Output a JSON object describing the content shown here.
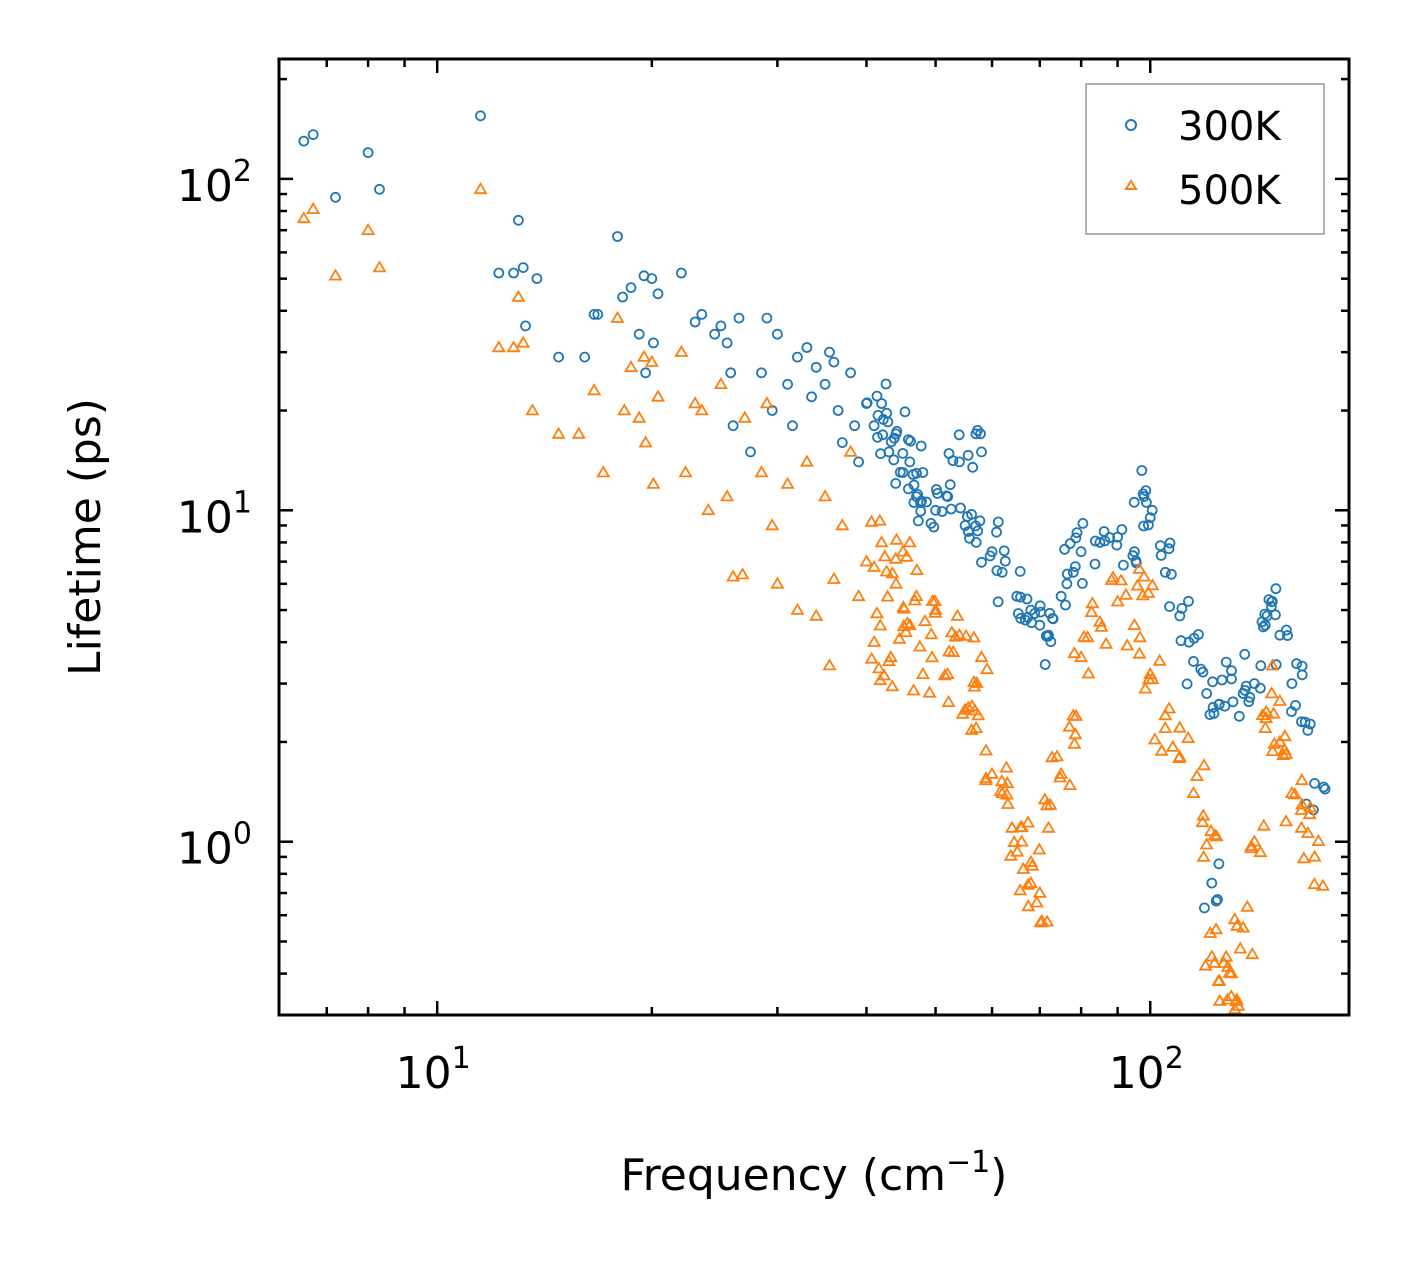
{
  "chart_data": {
    "type": "scatter",
    "title": "",
    "xlabel": "Frequency (cm",
    "xlabel_sup": "−1",
    "xlabel_close": ")",
    "ylabel": "Lifetime (ps)",
    "xscale": "log",
    "yscale": "log",
    "xlim": [
      6.0,
      190.0
    ],
    "ylim": [
      0.3,
      230.0
    ],
    "x_ticks": [
      {
        "value": 10,
        "base": "10",
        "exp": "1"
      },
      {
        "value": 100,
        "base": "10",
        "exp": "2"
      }
    ],
    "y_ticks": [
      {
        "value": 1,
        "base": "10",
        "exp": "0"
      },
      {
        "value": 10,
        "base": "10",
        "exp": "1"
      },
      {
        "value": 100,
        "base": "10",
        "exp": "2"
      }
    ],
    "grid": false,
    "legend_position": "top-right",
    "series": [
      {
        "name": "300K",
        "marker": "circle",
        "color": "#1f77b4",
        "points": [
          [
            6.5,
            130
          ],
          [
            6.7,
            136
          ],
          [
            7.2,
            88
          ],
          [
            8.0,
            120
          ],
          [
            8.3,
            93
          ],
          [
            11.5,
            155
          ],
          [
            12.2,
            52
          ],
          [
            12.8,
            52
          ],
          [
            13.0,
            75
          ],
          [
            13.2,
            54
          ],
          [
            13.3,
            36
          ],
          [
            13.8,
            50
          ],
          [
            14.8,
            29
          ],
          [
            16.1,
            29
          ],
          [
            16.6,
            39
          ],
          [
            16.8,
            39
          ],
          [
            17.9,
            67
          ],
          [
            18.2,
            44
          ],
          [
            18.7,
            47
          ],
          [
            19.2,
            34
          ],
          [
            19.5,
            51
          ],
          [
            19.6,
            26
          ],
          [
            20.0,
            50
          ],
          [
            20.1,
            32
          ],
          [
            20.4,
            45
          ],
          [
            22.0,
            52
          ],
          [
            23.0,
            37
          ],
          [
            23.5,
            39
          ],
          [
            24.5,
            34
          ],
          [
            25.0,
            36
          ],
          [
            25.5,
            32
          ],
          [
            25.8,
            26
          ],
          [
            26.5,
            38
          ],
          [
            26.0,
            18
          ],
          [
            27.5,
            15
          ],
          [
            28.5,
            26
          ],
          [
            29.0,
            38
          ],
          [
            29.5,
            20
          ],
          [
            30.0,
            34
          ],
          [
            31.0,
            24
          ],
          [
            31.5,
            18
          ],
          [
            32.0,
            29
          ],
          [
            33.0,
            31
          ],
          [
            33.5,
            22
          ],
          [
            34.0,
            27
          ],
          [
            35.0,
            24
          ],
          [
            35.5,
            30
          ],
          [
            36.0,
            28
          ],
          [
            36.5,
            20
          ],
          [
            37.0,
            16
          ],
          [
            38.0,
            26
          ],
          [
            38.5,
            18
          ],
          [
            39.0,
            14
          ],
          [
            40.0,
            21
          ],
          [
            41.0,
            18
          ],
          [
            42.0,
            21
          ],
          [
            43.0,
            15
          ],
          [
            44.0,
            17
          ],
          [
            45.0,
            13
          ],
          [
            46.0,
            14
          ],
          [
            47.0,
            11
          ],
          [
            48.0,
            13
          ],
          [
            50.0,
            10
          ],
          [
            52.0,
            11
          ],
          [
            54.0,
            14
          ],
          [
            55.0,
            9
          ],
          [
            57.0,
            8
          ],
          [
            58.0,
            15
          ],
          [
            60.0,
            7.5
          ],
          [
            62.0,
            6.5
          ],
          [
            65.0,
            5.5
          ],
          [
            68.0,
            5.0
          ],
          [
            70.0,
            4.5
          ],
          [
            72.0,
            4.2
          ],
          [
            75.0,
            5.5
          ],
          [
            78.0,
            6.5
          ],
          [
            80.0,
            7.5
          ],
          [
            85.0,
            8.0
          ],
          [
            90.0,
            8.3
          ],
          [
            95.0,
            7.5
          ],
          [
            98.0,
            11.0
          ],
          [
            100.0,
            9.5
          ],
          [
            105.0,
            6.5
          ],
          [
            110.0,
            4.8
          ],
          [
            115.0,
            3.5
          ],
          [
            120.0,
            2.8
          ],
          [
            122.0,
            0.75
          ],
          [
            125.0,
            2.6
          ],
          [
            130.0,
            3.1
          ],
          [
            135.0,
            2.8
          ],
          [
            140.0,
            3.0
          ],
          [
            145.0,
            4.5
          ],
          [
            148.0,
            5.3
          ],
          [
            152.0,
            4.2
          ],
          [
            158.0,
            3.0
          ],
          [
            163.0,
            2.3
          ],
          [
            170.0,
            1.5
          ]
        ]
      },
      {
        "name": "500K",
        "marker": "triangle",
        "color": "#ff7f0e",
        "points": [
          [
            6.5,
            76
          ],
          [
            6.7,
            81
          ],
          [
            7.2,
            51
          ],
          [
            8.0,
            70
          ],
          [
            8.3,
            54
          ],
          [
            11.5,
            93
          ],
          [
            12.2,
            31
          ],
          [
            12.8,
            31
          ],
          [
            13.0,
            44
          ],
          [
            13.2,
            32
          ],
          [
            13.6,
            20
          ],
          [
            14.8,
            17
          ],
          [
            15.8,
            17
          ],
          [
            16.6,
            23
          ],
          [
            17.1,
            13
          ],
          [
            17.9,
            38
          ],
          [
            18.3,
            20
          ],
          [
            18.7,
            27
          ],
          [
            19.2,
            19
          ],
          [
            19.5,
            29
          ],
          [
            19.6,
            16
          ],
          [
            20.0,
            28
          ],
          [
            20.1,
            12
          ],
          [
            20.4,
            22
          ],
          [
            22.0,
            30
          ],
          [
            22.3,
            13
          ],
          [
            23.0,
            21
          ],
          [
            23.5,
            20
          ],
          [
            24.0,
            10
          ],
          [
            25.0,
            24
          ],
          [
            25.5,
            11
          ],
          [
            26.0,
            6.3
          ],
          [
            26.8,
            6.4
          ],
          [
            27.0,
            19
          ],
          [
            28.5,
            13
          ],
          [
            29.0,
            21
          ],
          [
            29.5,
            9
          ],
          [
            30.0,
            6.0
          ],
          [
            31.0,
            12
          ],
          [
            32.0,
            5
          ],
          [
            33.0,
            14
          ],
          [
            34.0,
            4.8
          ],
          [
            35.0,
            11
          ],
          [
            35.5,
            3.4
          ],
          [
            36.0,
            6.2
          ],
          [
            37.0,
            9
          ],
          [
            38.0,
            15
          ],
          [
            39.0,
            5.5
          ],
          [
            40.0,
            7
          ],
          [
            41.0,
            4.0
          ],
          [
            42.0,
            8
          ],
          [
            43.0,
            3.5
          ],
          [
            44.0,
            6
          ],
          [
            45.0,
            7.5
          ],
          [
            46.0,
            4.5
          ],
          [
            47.0,
            5.5
          ],
          [
            48.0,
            3.2
          ],
          [
            50.0,
            5
          ],
          [
            52.0,
            3.2
          ],
          [
            54.0,
            4.2
          ],
          [
            55.0,
            2.5
          ],
          [
            57.0,
            2.2
          ],
          [
            58.0,
            3.6
          ],
          [
            60.0,
            1.6
          ],
          [
            62.0,
            1.4
          ],
          [
            64.0,
            1.1
          ],
          [
            66.0,
            1.0
          ],
          [
            68.0,
            0.75
          ],
          [
            70.0,
            0.7
          ],
          [
            72.0,
            1.1
          ],
          [
            75.0,
            1.6
          ],
          [
            78.0,
            2.4
          ],
          [
            80.0,
            3.6
          ],
          [
            85.0,
            4.6
          ],
          [
            90.0,
            5.3
          ],
          [
            95.0,
            4.5
          ],
          [
            98.0,
            6.3
          ],
          [
            100.0,
            3.2
          ],
          [
            105.0,
            2.2
          ],
          [
            110.0,
            1.8
          ],
          [
            115.0,
            1.4
          ],
          [
            120.0,
            0.98
          ],
          [
            122.0,
            0.45
          ],
          [
            125.0,
            0.38
          ],
          [
            130.0,
            0.4
          ],
          [
            132.0,
            0.33
          ],
          [
            135.0,
            0.55
          ],
          [
            140.0,
            1.0
          ],
          [
            145.0,
            2.2
          ],
          [
            148.0,
            2.8
          ],
          [
            152.0,
            2.0
          ],
          [
            158.0,
            1.4
          ],
          [
            163.0,
            1.1
          ],
          [
            170.0,
            0.9
          ]
        ]
      }
    ]
  }
}
